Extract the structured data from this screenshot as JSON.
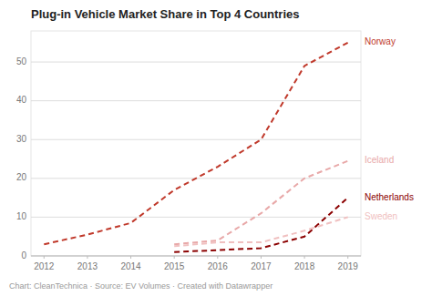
{
  "chart_data": {
    "type": "line",
    "title": "Plug-in Vehicle Market Share in Top 4 Countries",
    "caption": "Chart: CleanTechnica · Source: EV Volumes · Created with Datawrapper",
    "x": [
      2012,
      2013,
      2014,
      2015,
      2016,
      2017,
      2018,
      2019
    ],
    "series": [
      {
        "name": "Norway",
        "color": "#c0392b",
        "line_style": "dashed",
        "values": [
          3.0,
          5.5,
          8.5,
          17.0,
          23.0,
          30.0,
          49.0,
          55.0
        ]
      },
      {
        "name": "Iceland",
        "color": "#e8a8a8",
        "line_style": "dashed",
        "values": [
          null,
          null,
          null,
          3.0,
          4.0,
          11.0,
          20.0,
          24.5
        ]
      },
      {
        "name": "Netherlands",
        "color": "#8b0000",
        "line_style": "dashed",
        "values": [
          null,
          null,
          null,
          1.0,
          1.5,
          2.0,
          5.0,
          15.0
        ]
      },
      {
        "name": "Sweden",
        "color": "#f0c0c0",
        "line_style": "dashed",
        "values": [
          null,
          null,
          null,
          2.5,
          3.5,
          3.5,
          6.5,
          10.0
        ]
      }
    ],
    "xlim": [
      2011.7,
      2019.3
    ],
    "xticks": [
      2012,
      2013,
      2014,
      2015,
      2016,
      2017,
      2018,
      2019
    ],
    "ylim": [
      0,
      58
    ],
    "yticks": [
      0,
      10,
      20,
      30,
      40,
      50
    ],
    "grid": true
  }
}
